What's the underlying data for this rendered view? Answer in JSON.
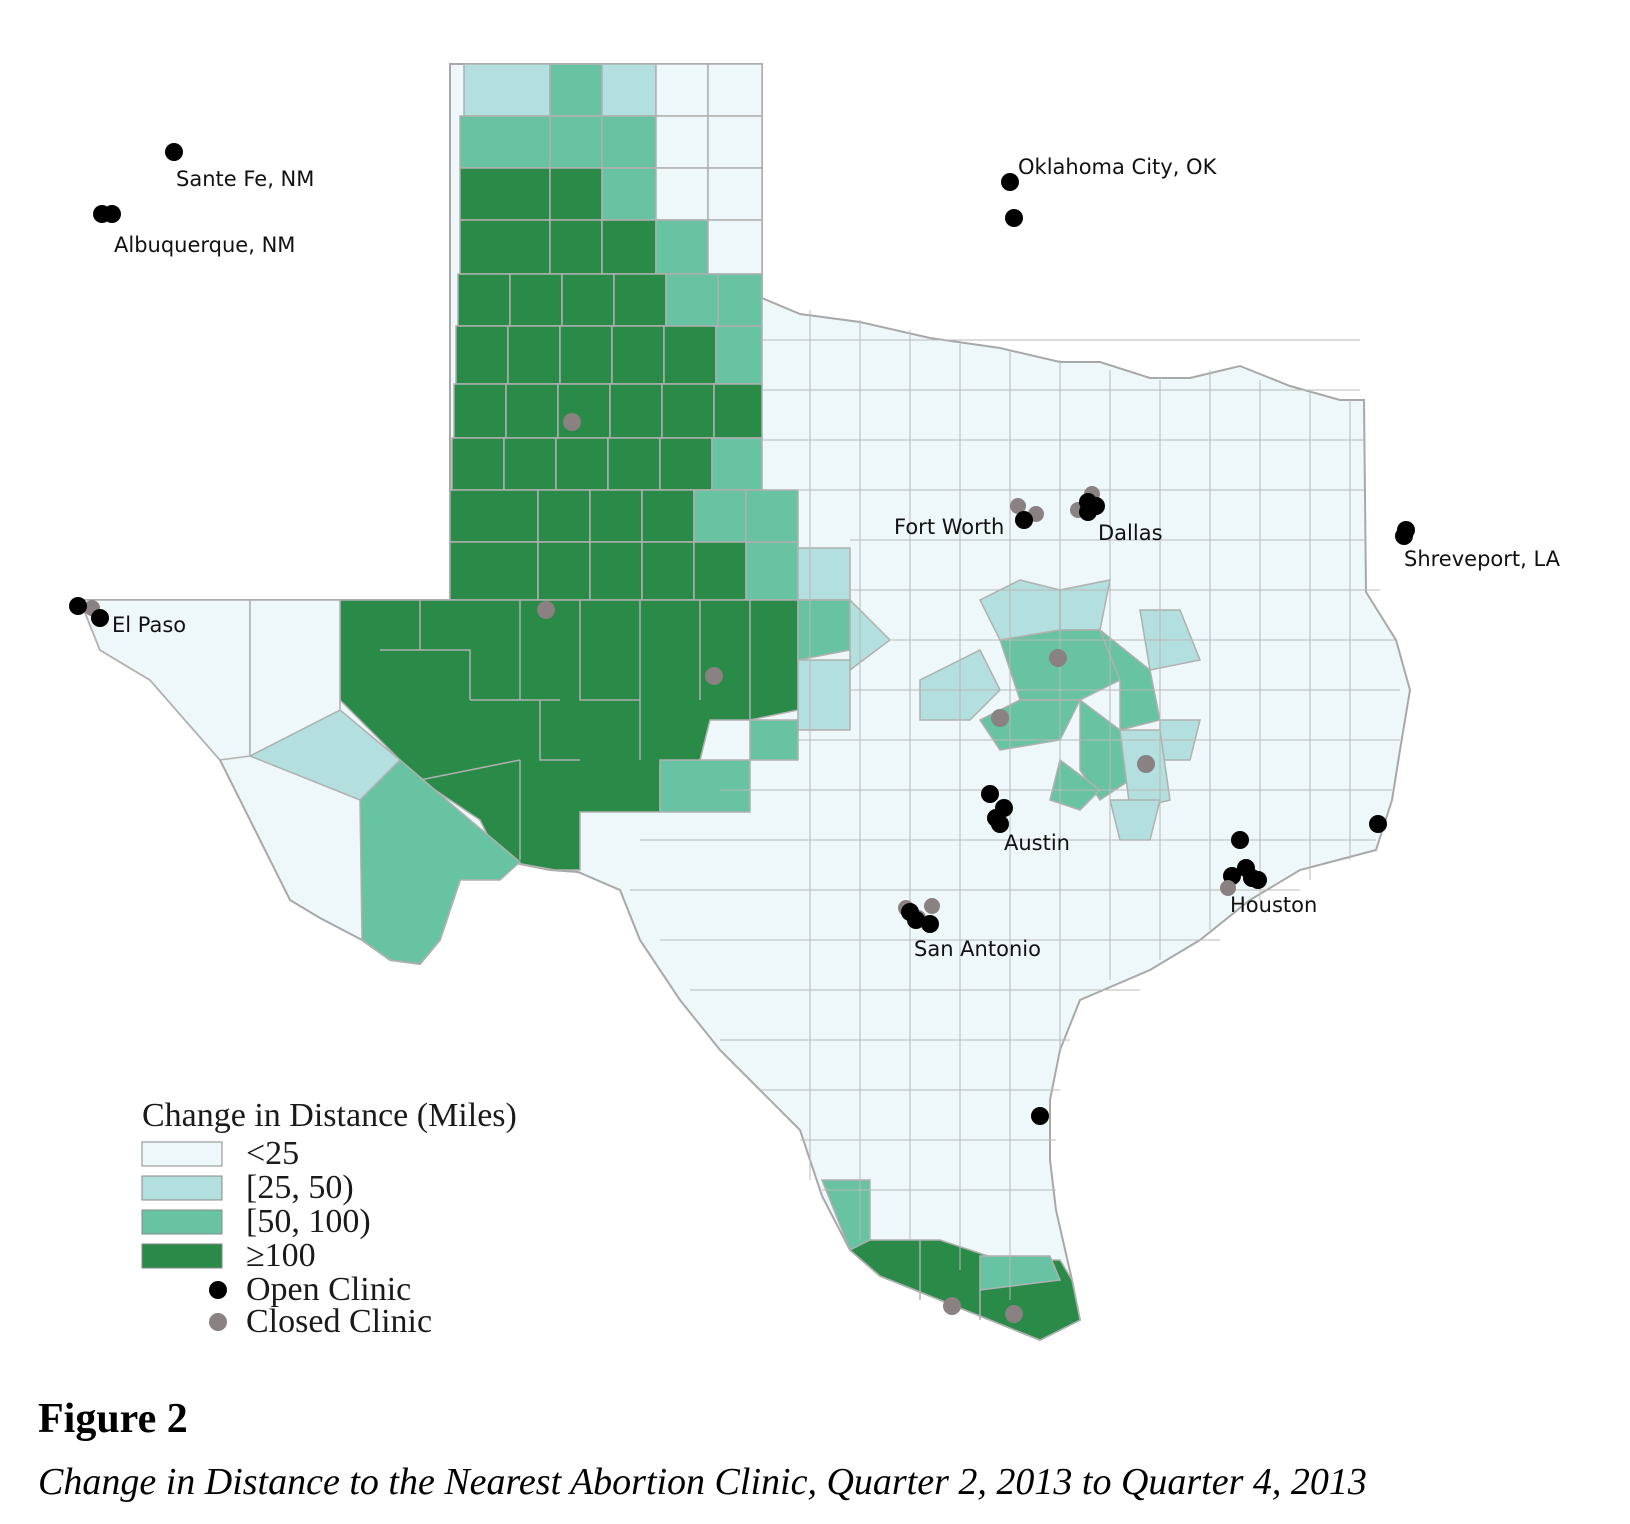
{
  "legend": {
    "title": "Change in Distance (Miles)",
    "categories": [
      {
        "label": "<25",
        "color": "#eef7f9"
      },
      {
        "label": "[25, 50)",
        "color": "#b3e0de"
      },
      {
        "label": "[50, 100)",
        "color": "#68c3a3"
      },
      {
        "label": "≥100",
        "color": "#2a8a48"
      }
    ],
    "markers": [
      {
        "label": "Open Clinic",
        "color": "#000000"
      },
      {
        "label": "Closed Clinic",
        "color": "#8a8282"
      }
    ]
  },
  "city_labels": {
    "santa_fe": "Sante Fe, NM",
    "albuquerque": "Albuquerque, NM",
    "oklahoma_city": "Oklahoma City, OK",
    "fort_worth": "Fort Worth",
    "dallas": "Dallas",
    "shreveport": "Shreveport, LA",
    "el_paso": "El Paso",
    "austin": "Austin",
    "houston": "Houston",
    "san_antonio": "San Antonio"
  },
  "figure": {
    "number": "Figure 2",
    "caption": "Change in Distance to the Nearest Abortion Clinic, Quarter 2, 2013 to Quarter 4, 2013"
  },
  "colors": {
    "border": "#a8a8a8",
    "base_fill": "#eef7f9"
  }
}
